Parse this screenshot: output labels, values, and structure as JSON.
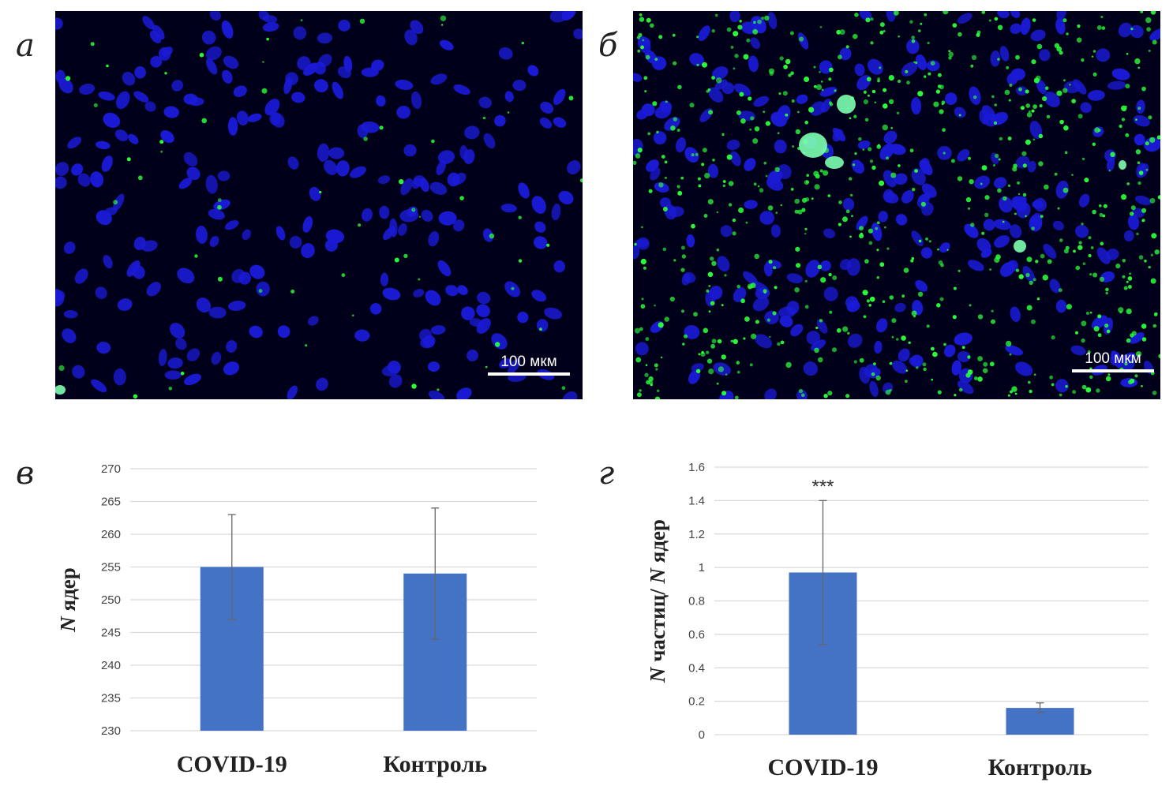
{
  "panels": {
    "a": {
      "letter": "а"
    },
    "b": {
      "letter": "б"
    },
    "c": {
      "letter": "в"
    },
    "d": {
      "letter": "г"
    }
  },
  "micrographs": {
    "a": {
      "scale_label": "100 мкм"
    },
    "b": {
      "scale_label": "100 мкм"
    }
  },
  "colors": {
    "bar": "#4472c4",
    "grid": "#d9d9d9",
    "nucleus": "#1a1ad6",
    "particle": "#2bff3a"
  },
  "chart_data": [
    {
      "id": "c",
      "type": "bar",
      "categories": [
        "COVID-19",
        "Контроль"
      ],
      "values": [
        255,
        254
      ],
      "error": [
        8,
        10
      ],
      "ylim": [
        230,
        270
      ],
      "yticks": [
        230,
        235,
        240,
        245,
        250,
        255,
        260,
        265,
        270
      ],
      "ytick_labels": [
        "230",
        "235",
        "240",
        "245",
        "250",
        "255",
        "260",
        "265",
        "270"
      ],
      "ylabel": "N ядер",
      "ylabel_italic_part": "N",
      "ylabel_rest": " ядер",
      "xlabel": "",
      "title": "",
      "annotations": []
    },
    {
      "id": "d",
      "type": "bar",
      "categories": [
        "COVID-19",
        "Контроль"
      ],
      "values": [
        0.97,
        0.16
      ],
      "error": [
        0.43,
        0.03
      ],
      "ylim": [
        0,
        1.6
      ],
      "yticks": [
        0,
        0.2,
        0.4,
        0.6,
        0.8,
        1,
        1.2,
        1.4,
        1.6
      ],
      "ytick_labels": [
        "0",
        "0.2",
        "0.4",
        "0.6",
        "0.8",
        "1",
        "1.2",
        "1.4",
        "1.6"
      ],
      "ylabel": "N частиц/ N ядер",
      "ylabel_italic_part": "N",
      "ylabel_rest": " частиц/ ",
      "ylabel_italic_part2": "N",
      "ylabel_rest2": " ядер",
      "xlabel": "",
      "title": "",
      "annotations": [
        {
          "category": "COVID-19",
          "text": "***"
        }
      ]
    }
  ]
}
